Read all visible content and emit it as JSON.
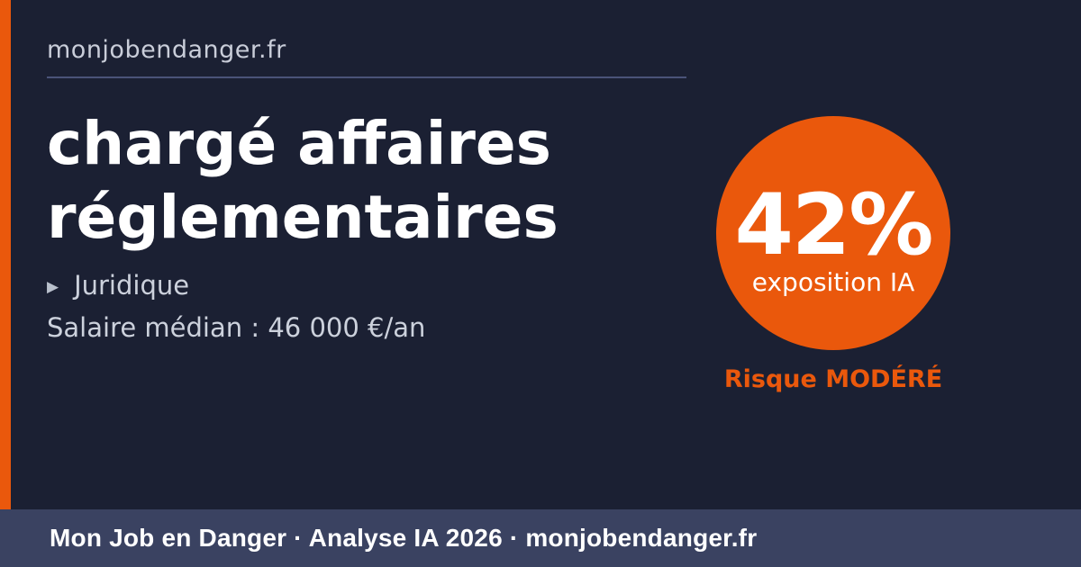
{
  "page": {
    "background_color": "#1b2033",
    "accent_color": "#ea580c",
    "footer_background_color": "#3a4261",
    "muted_text_color": "#c9cdd9"
  },
  "header": {
    "site_label": "monjobendanger.fr"
  },
  "main": {
    "job_title": "chargé affaires réglementaires",
    "sector": {
      "icon": "▶",
      "label": "Juridique"
    },
    "salary_line": "Salaire médian : 46 000 €/an"
  },
  "exposure": {
    "percent": "42%",
    "caption": "exposition IA",
    "risk_label": "Risque MODÉRÉ"
  },
  "footer": {
    "text": "Mon Job en Danger · Analyse IA 2026 · monjobendanger.fr"
  }
}
